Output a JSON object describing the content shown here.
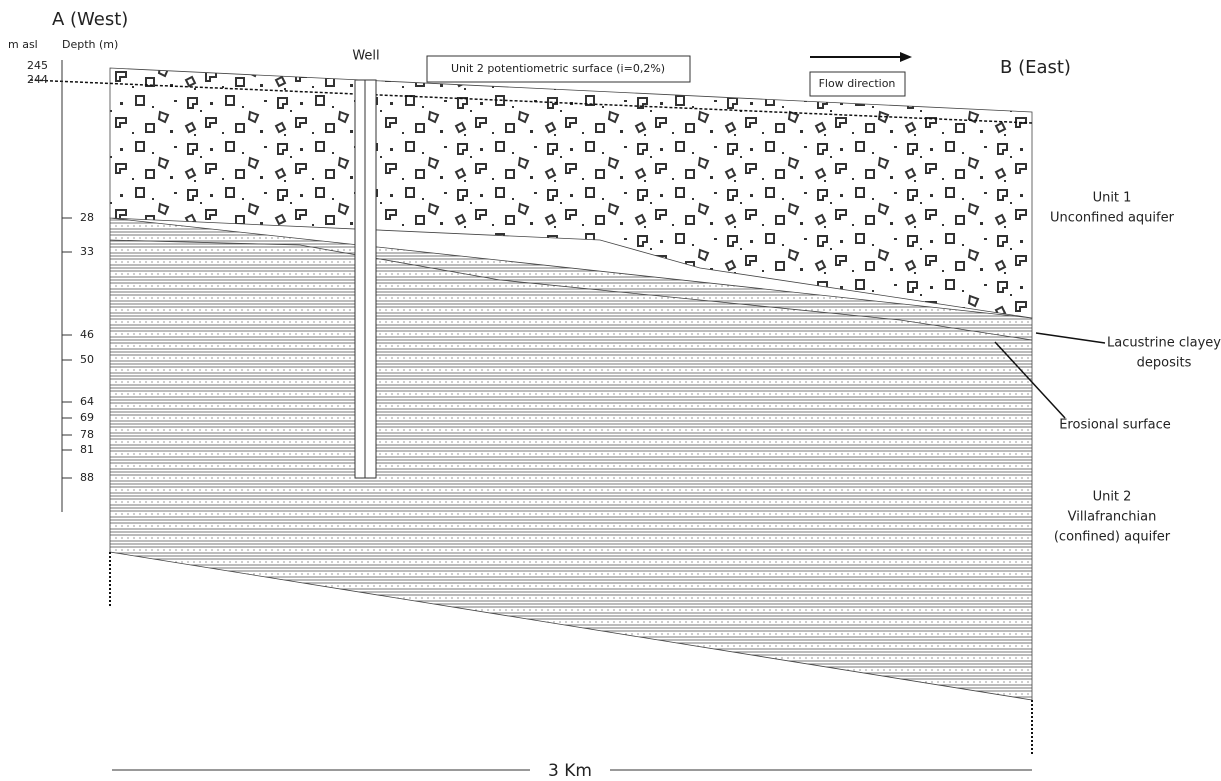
{
  "header": {
    "west": "A (West)",
    "east": "B (East)"
  },
  "axis": {
    "elevation_title": "m  asl",
    "depth_title": "Depth (m)",
    "elevations": [
      "245",
      "244"
    ],
    "depths": [
      "28",
      "33",
      "46",
      "50",
      "64",
      "69",
      "78",
      "81",
      "88"
    ]
  },
  "well": {
    "label": "Well"
  },
  "potentiometric": {
    "label": "Unit 2 potentiometric surface (i=0,2%)"
  },
  "flow": {
    "label": "Flow direction"
  },
  "units": {
    "unit1": {
      "title": "Unit 1",
      "subtitle": "Unconfined aquifer"
    },
    "unit2": {
      "title": "Unit 2",
      "lines": [
        "Villafranchian",
        "(confined) aquifer"
      ]
    }
  },
  "callouts": {
    "lacustrine": [
      "Lacustrine clayey",
      "deposits"
    ],
    "erosional": "Erosional surface"
  },
  "scale": {
    "label": "3 Km"
  }
}
